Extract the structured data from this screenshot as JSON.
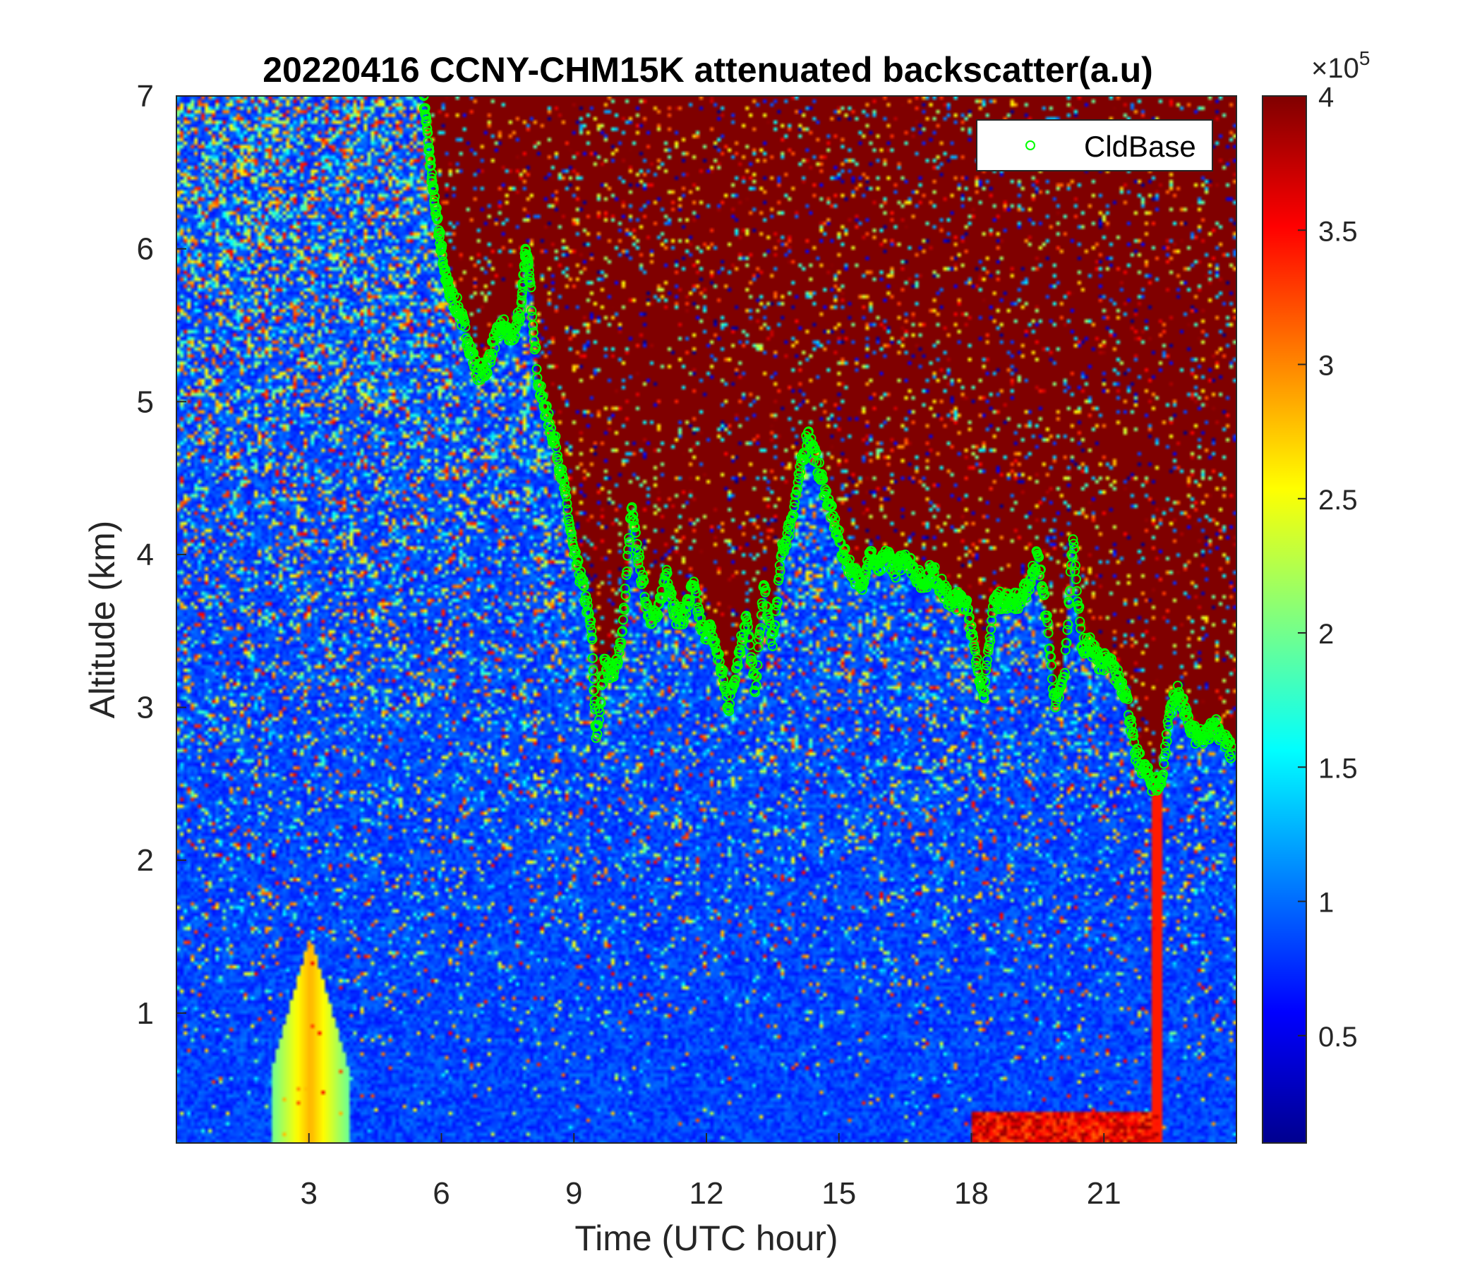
{
  "chart_data": {
    "type": "heatmap",
    "title": "20220416 CCNY-CHM15K attenuated backscatter(a.u)",
    "xlabel": "Time (UTC hour)",
    "ylabel": "Altitude (km)",
    "xlim": [
      0,
      24
    ],
    "ylim": [
      0.15,
      7
    ],
    "xticks": [
      3,
      6,
      9,
      12,
      15,
      18,
      21
    ],
    "yticks": [
      1,
      2,
      3,
      4,
      5,
      6,
      7
    ],
    "colorbar": {
      "colormap": "jet",
      "clim": [
        0.1,
        4
      ],
      "ticks": [
        0.5,
        1,
        1.5,
        2,
        2.5,
        3,
        3.5,
        4
      ],
      "ticklabels": [
        "0.5",
        "1",
        "1.5",
        "2",
        "2.5",
        "3",
        "3.5",
        "4"
      ],
      "exponent_base": "×10",
      "exponent_power": "5"
    },
    "legend": {
      "position": "top-right",
      "entries": [
        "CldBase"
      ]
    },
    "grid": false,
    "series": [
      {
        "name": "CldBase",
        "marker": "circle-open",
        "color": "#00ff00",
        "x": [
          5.6,
          5.7,
          5.8,
          5.9,
          6.0,
          6.1,
          6.2,
          6.4,
          6.6,
          6.8,
          7.0,
          7.2,
          7.4,
          7.6,
          7.8,
          7.9,
          8.0,
          8.2,
          8.4,
          8.6,
          8.8,
          9.0,
          9.2,
          9.4,
          9.5,
          9.7,
          9.9,
          10.1,
          10.3,
          10.5,
          10.7,
          10.9,
          11.1,
          11.3,
          11.5,
          11.7,
          11.9,
          12.1,
          12.3,
          12.5,
          12.7,
          12.9,
          13.1,
          13.3,
          13.5,
          13.7,
          13.9,
          14.1,
          14.3,
          14.5,
          14.7,
          14.9,
          15.1,
          15.3,
          15.5,
          15.7,
          15.9,
          16.1,
          16.3,
          16.5,
          16.7,
          16.9,
          17.1,
          17.3,
          17.5,
          17.7,
          17.9,
          18.1,
          18.3,
          18.5,
          18.7,
          18.9,
          19.1,
          19.3,
          19.5,
          19.7,
          19.9,
          20.1,
          20.3,
          20.5,
          20.7,
          20.9,
          21.1,
          21.3,
          21.5,
          21.7,
          21.9,
          22.1,
          22.3,
          22.5,
          22.7,
          22.9,
          23.1,
          23.3,
          23.5,
          23.7,
          23.9
        ],
        "y": [
          7.0,
          6.7,
          6.4,
          6.2,
          6.0,
          5.8,
          5.7,
          5.6,
          5.4,
          5.2,
          5.2,
          5.4,
          5.5,
          5.4,
          5.6,
          6.0,
          5.8,
          5.1,
          4.9,
          4.7,
          4.4,
          4.0,
          3.8,
          3.5,
          2.8,
          3.3,
          3.2,
          3.5,
          4.3,
          3.9,
          3.6,
          3.6,
          3.9,
          3.6,
          3.6,
          3.8,
          3.5,
          3.5,
          3.3,
          3.0,
          3.3,
          3.6,
          3.1,
          3.8,
          3.4,
          4.0,
          4.2,
          4.5,
          4.8,
          4.6,
          4.4,
          4.2,
          4.0,
          3.9,
          3.8,
          4.0,
          3.9,
          4.0,
          3.9,
          4.0,
          3.9,
          3.8,
          3.9,
          3.8,
          3.7,
          3.7,
          3.7,
          3.3,
          3.1,
          3.7,
          3.7,
          3.7,
          3.7,
          3.8,
          4.0,
          3.6,
          3.0,
          3.2,
          4.1,
          3.4,
          3.4,
          3.3,
          3.3,
          3.2,
          3.1,
          2.7,
          2.6,
          2.5,
          2.5,
          3.0,
          3.1,
          2.9,
          2.8,
          2.8,
          2.9,
          2.8,
          2.7
        ]
      }
    ]
  }
}
